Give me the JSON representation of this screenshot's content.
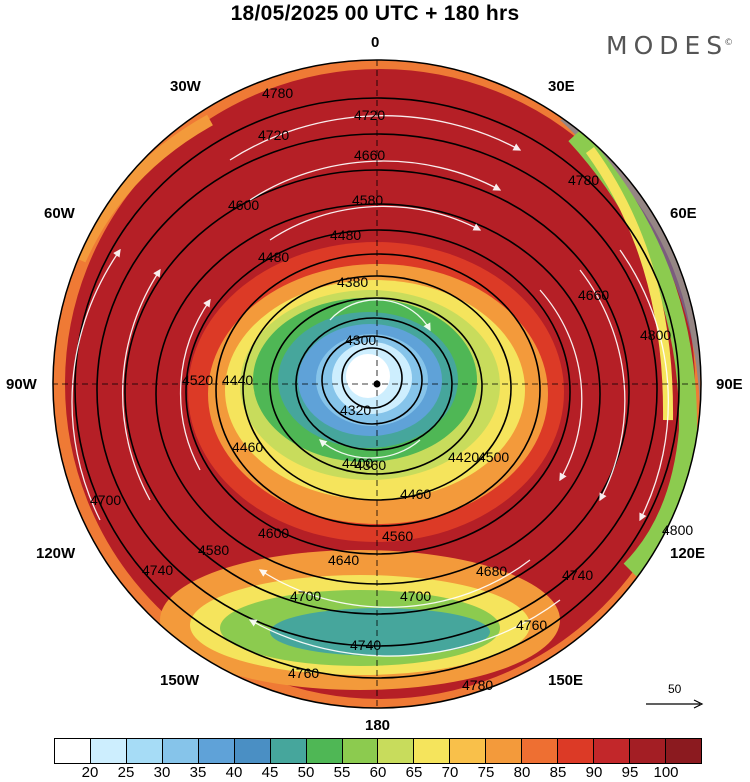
{
  "title": "18/05/2025  00 UTC  + 180 hrs",
  "brand": {
    "name": "MODES",
    "mark": "©"
  },
  "map": {
    "projection": "south polar stereographic",
    "longitude_labels": [
      "0",
      "30E",
      "60E",
      "90E",
      "120E",
      "150E",
      "180",
      "150W",
      "120W",
      "90W",
      "60W",
      "30W"
    ],
    "pole_marker": "pole-dot-icon",
    "contour_labels": [
      "4300",
      "4320",
      "4360",
      "4380",
      "4400",
      "4420",
      "4440",
      "4460",
      "4480",
      "4500",
      "4520",
      "4560",
      "4580",
      "4600",
      "4640",
      "4660",
      "4680",
      "4700",
      "4720",
      "4740",
      "4760",
      "4780",
      "4800"
    ],
    "streamline_color": "#ffffff",
    "contour_color": "#000000"
  },
  "reference_vector": {
    "label": "50",
    "icon": "arrow-right-icon"
  },
  "colorbar": {
    "tick_labels": [
      "20",
      "25",
      "30",
      "35",
      "40",
      "45",
      "50",
      "55",
      "60",
      "65",
      "70",
      "75",
      "80",
      "85",
      "90",
      "95",
      "100"
    ],
    "colors": [
      "#ffffff",
      "#cdeefe",
      "#a6dcf6",
      "#86c4ea",
      "#5fa2d8",
      "#4a8fc4",
      "#46a69c",
      "#4fb755",
      "#8ccb4f",
      "#c8dc5c",
      "#f5e45c",
      "#f9c04a",
      "#f39a3b",
      "#ee6f32",
      "#dc3a26",
      "#c2272a",
      "#a31e24",
      "#8b1a1f"
    ]
  }
}
